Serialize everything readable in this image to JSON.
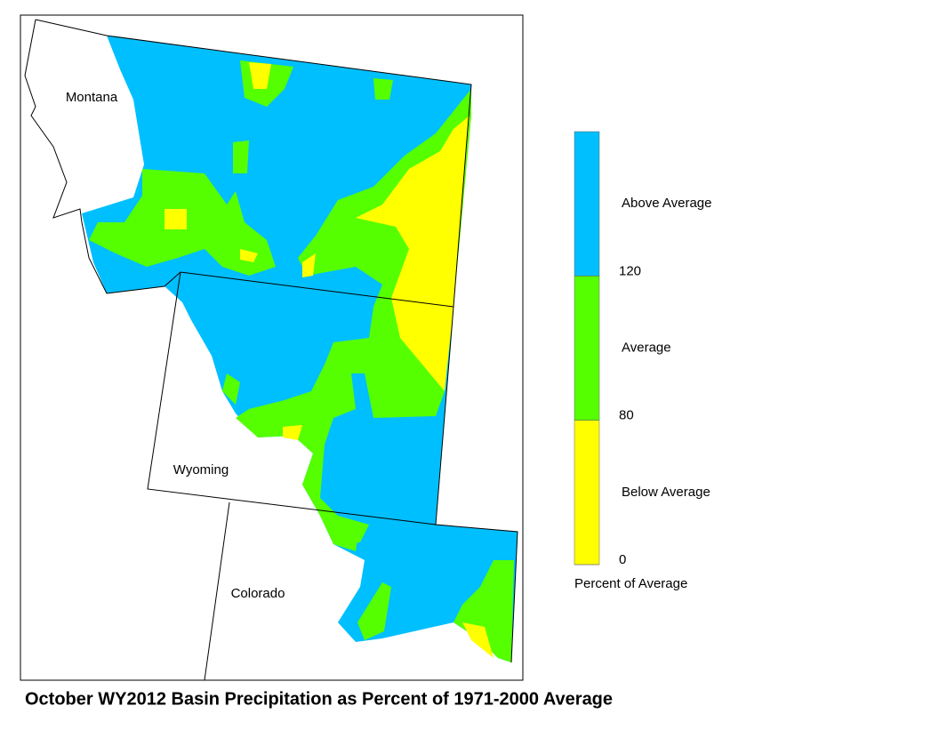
{
  "map": {
    "title": "October WY2012 Basin Precipitation as Percent of 1971-2000 Average",
    "state_labels": [
      "Montana",
      "Wyoming",
      "Colorado"
    ]
  },
  "legend": {
    "title": "Percent of Average",
    "classes": [
      {
        "label": "Below Average",
        "color": "#ffff00"
      },
      {
        "label": "Average",
        "color": "#55ff00"
      },
      {
        "label": "Above Average",
        "color": "#00bfff"
      }
    ],
    "ticks": [
      0,
      80,
      120
    ]
  }
}
